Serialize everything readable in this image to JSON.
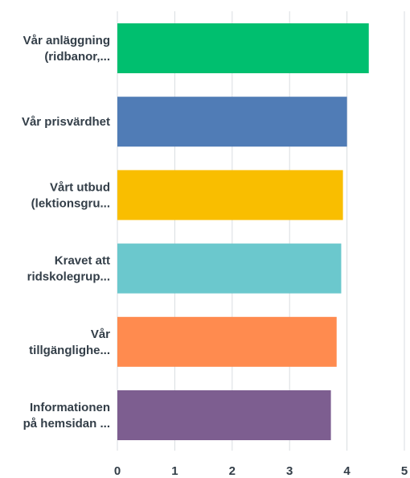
{
  "chart_data": {
    "type": "bar",
    "orientation": "horizontal",
    "categories": [
      [
        "Vår anläggning",
        "(ridbanor,..."
      ],
      [
        "Vår prisvärdhet"
      ],
      [
        "Vårt utbud",
        "(lektionsgru..."
      ],
      [
        "Kravet att",
        "ridskolegrup..."
      ],
      [
        "Vår",
        "tillgänglighe..."
      ],
      [
        "Informationen",
        "på hemsidan ..."
      ]
    ],
    "values": [
      4.38,
      4.0,
      3.93,
      3.9,
      3.82,
      3.72
    ],
    "colors": [
      "#00bf6f",
      "#507cb6",
      "#f9be00",
      "#6bc8cd",
      "#ff8b4f",
      "#7d5e90"
    ],
    "xlim": [
      0,
      5
    ],
    "ticks": [
      "0",
      "1",
      "2",
      "3",
      "4",
      "5"
    ],
    "grid": true,
    "title": "",
    "xlabel": "",
    "ylabel": ""
  }
}
